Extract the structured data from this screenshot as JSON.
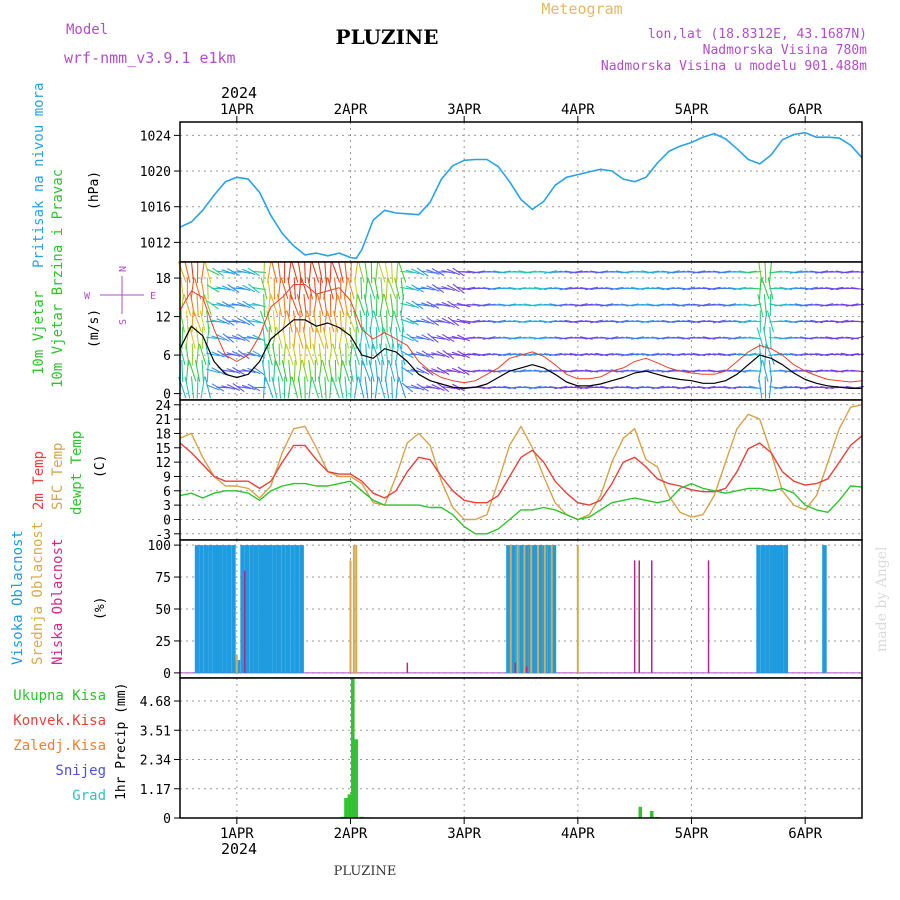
{
  "header": {
    "model_label": "Model",
    "model_name": "wrf-nmm_v3.9.1 e1km",
    "title": "PLUZINE",
    "meteogram_label": "Meteogram",
    "lonlat": "lon,lat (18.8312E, 43.1687N)",
    "altitude": "Nadmorska Visina 780m",
    "model_altitude": "Nadmorska Visina u modelu 901.488m",
    "top_year": "2024",
    "bottom_year": "2024",
    "footer_title": "PLUZINE",
    "credit": "made by Angel"
  },
  "colors": {
    "pressure": "#29a3e6",
    "wind_speed": "#000000",
    "gust": "#e8402a",
    "t2m": "#e8413a",
    "sfc": "#d7a34a",
    "dewpt": "#2dc42d",
    "high_cloud": "#1f9be0",
    "mid_cloud": "#d8aa4a",
    "low_cloud": "#b2278f",
    "precip": "#31c431",
    "purple_text": "#b04ec8",
    "arrow_far": "#8b25e0"
  },
  "chart_data": [
    {
      "type": "line",
      "name": "pressure",
      "ylabel": "Pritisak na nivou mora",
      "unit": "(hPa)",
      "yticks": [
        1012,
        1016,
        1020,
        1024
      ],
      "ylim": [
        1009.8,
        1025.5
      ],
      "x": [
        0.5,
        0.6,
        0.7,
        0.8,
        0.9,
        1.0,
        1.1,
        1.2,
        1.3,
        1.4,
        1.5,
        1.6,
        1.7,
        1.8,
        1.9,
        2.0,
        2.05,
        2.1,
        2.2,
        2.3,
        2.4,
        2.5,
        2.6,
        2.7,
        2.8,
        2.9,
        3.0,
        3.1,
        3.2,
        3.3,
        3.4,
        3.5,
        3.6,
        3.7,
        3.8,
        3.9,
        4.0,
        4.1,
        4.2,
        4.3,
        4.4,
        4.5,
        4.6,
        4.7,
        4.8,
        4.9,
        5.0,
        5.1,
        5.2,
        5.3,
        5.4,
        5.5,
        5.6,
        5.7,
        5.8,
        5.9,
        6.0,
        6.1,
        6.2,
        6.3,
        6.4,
        6.5
      ],
      "values": [
        1013.7,
        1014.3,
        1015.6,
        1017.3,
        1018.8,
        1019.3,
        1019.1,
        1017.6,
        1015.0,
        1013.0,
        1011.6,
        1010.6,
        1010.8,
        1010.5,
        1010.8,
        1010.3,
        1010.2,
        1011.2,
        1014.5,
        1015.6,
        1015.3,
        1015.2,
        1015.1,
        1016.5,
        1019.1,
        1020.6,
        1021.2,
        1021.3,
        1021.3,
        1020.5,
        1018.8,
        1016.8,
        1015.7,
        1016.6,
        1018.4,
        1019.3,
        1019.6,
        1019.9,
        1020.2,
        1020.0,
        1019.1,
        1018.8,
        1019.3,
        1020.9,
        1022.2,
        1022.8,
        1023.2,
        1023.8,
        1024.2,
        1023.6,
        1022.5,
        1021.3,
        1020.8,
        1021.8,
        1023.5,
        1024.1,
        1024.3,
        1023.8,
        1023.8,
        1023.7,
        1022.9,
        1021.5
      ]
    },
    {
      "type": "line",
      "name": "wind",
      "ylabel": "10m Vjetar Brzina i Pravac",
      "unit": "(m/s)",
      "compass": {
        "n": "N",
        "s": "S",
        "e": "E",
        "w": "W"
      },
      "yticks": [
        0,
        6,
        12,
        18
      ],
      "ylim": [
        -1,
        20.5
      ],
      "series": [
        {
          "name": "speed",
          "x": [
            0.5,
            0.6,
            0.7,
            0.8,
            0.9,
            1.0,
            1.1,
            1.2,
            1.3,
            1.4,
            1.5,
            1.6,
            1.7,
            1.8,
            1.9,
            2.0,
            2.1,
            2.2,
            2.3,
            2.4,
            2.5,
            2.6,
            2.7,
            2.8,
            2.9,
            3.0,
            3.1,
            3.2,
            3.3,
            3.4,
            3.5,
            3.6,
            3.7,
            3.8,
            3.9,
            4.0,
            4.1,
            4.2,
            4.3,
            4.4,
            4.5,
            4.6,
            4.7,
            4.8,
            4.9,
            5.0,
            5.1,
            5.2,
            5.3,
            5.4,
            5.5,
            5.6,
            5.7,
            5.8,
            5.9,
            6.0,
            6.1,
            6.2,
            6.3,
            6.4,
            6.5
          ],
          "values": [
            7,
            10.5,
            9,
            5,
            3,
            2.5,
            3,
            5,
            8.5,
            10,
            11.5,
            11.5,
            10.5,
            11,
            10.3,
            9,
            6,
            5.5,
            7,
            6.5,
            5,
            3,
            2,
            1.5,
            1,
            0.8,
            1,
            1.5,
            2.5,
            3.5,
            4,
            4.5,
            4,
            3,
            1.8,
            1.2,
            1.2,
            1.5,
            2,
            2.5,
            3.2,
            3.5,
            3,
            2.5,
            2.2,
            2,
            1.6,
            1.6,
            2,
            3,
            4.5,
            6,
            5.5,
            4.5,
            3.2,
            2.2,
            1.6,
            1.2,
            1,
            0.8,
            0.8
          ]
        },
        {
          "name": "gust",
          "x": [
            0.5,
            0.6,
            0.7,
            0.8,
            0.9,
            1.0,
            1.1,
            1.2,
            1.3,
            1.4,
            1.5,
            1.6,
            1.7,
            1.8,
            1.9,
            2.0,
            2.1,
            2.2,
            2.3,
            2.4,
            2.5,
            2.6,
            2.7,
            2.8,
            2.9,
            3.0,
            3.1,
            3.2,
            3.3,
            3.4,
            3.5,
            3.6,
            3.7,
            3.8,
            3.9,
            4.0,
            4.1,
            4.2,
            4.3,
            4.4,
            4.5,
            4.6,
            4.7,
            4.8,
            4.9,
            5.0,
            5.1,
            5.2,
            5.3,
            5.4,
            5.5,
            5.6,
            5.7,
            5.8,
            5.9,
            6.0,
            6.1,
            6.2,
            6.3,
            6.4,
            6.5
          ],
          "values": [
            13,
            16,
            15,
            10,
            6,
            5,
            6,
            9,
            13.5,
            15,
            17,
            17,
            15.5,
            16,
            16.5,
            14.5,
            10,
            8.5,
            9.5,
            8.5,
            7.5,
            5,
            3.5,
            2.5,
            2,
            1.7,
            2,
            3,
            4,
            5.5,
            6,
            6.5,
            5.8,
            4.5,
            3,
            2.3,
            2.3,
            2.6,
            3.5,
            4,
            5,
            5.5,
            4.8,
            4,
            3.5,
            3.2,
            3,
            3,
            3.5,
            5,
            6.5,
            7.5,
            7,
            6,
            4.5,
            3.5,
            2.8,
            2.2,
            2,
            1.8,
            2
          ]
        }
      ]
    },
    {
      "type": "line",
      "name": "temperature",
      "ylabels": [
        "2m Temp",
        "SFC Temp",
        "dewpt Temp"
      ],
      "unit": "(C)",
      "yticks": [
        -3,
        0,
        3,
        6,
        9,
        12,
        15,
        18,
        21,
        24
      ],
      "ylim": [
        -4.3,
        25
      ],
      "series": [
        {
          "name": "t2m",
          "x": [
            0.5,
            0.6,
            0.7,
            0.8,
            0.9,
            1.0,
            1.1,
            1.2,
            1.3,
            1.4,
            1.5,
            1.6,
            1.7,
            1.8,
            1.9,
            2.0,
            2.1,
            2.2,
            2.3,
            2.4,
            2.5,
            2.6,
            2.7,
            2.8,
            2.9,
            3.0,
            3.1,
            3.2,
            3.3,
            3.4,
            3.5,
            3.6,
            3.7,
            3.8,
            3.9,
            4.0,
            4.1,
            4.2,
            4.3,
            4.4,
            4.5,
            4.6,
            4.7,
            4.8,
            4.9,
            5.0,
            5.1,
            5.2,
            5.3,
            5.4,
            5.5,
            5.6,
            5.7,
            5.8,
            5.9,
            6.0,
            6.1,
            6.2,
            6.3,
            6.4,
            6.5
          ],
          "values": [
            16,
            14,
            11.5,
            9,
            8,
            8,
            8,
            6.5,
            8,
            12,
            15.5,
            15.5,
            12.5,
            10,
            9.5,
            9.5,
            8,
            5.5,
            4.5,
            6,
            10,
            13,
            12.5,
            9,
            6,
            4,
            3.5,
            3.5,
            5,
            9,
            13,
            14.5,
            12,
            8,
            5.5,
            3.5,
            3,
            4,
            7.5,
            12,
            13,
            11,
            8.5,
            7.5,
            7,
            6.2,
            5.8,
            5.8,
            6.5,
            10,
            14.8,
            16,
            14,
            10,
            8,
            7.2,
            7.5,
            8.5,
            12,
            15.5,
            17.5
          ]
        },
        {
          "name": "sfc",
          "x": [
            0.5,
            0.6,
            0.7,
            0.8,
            0.9,
            1.0,
            1.1,
            1.2,
            1.3,
            1.4,
            1.5,
            1.6,
            1.7,
            1.8,
            1.9,
            2.0,
            2.1,
            2.2,
            2.3,
            2.4,
            2.5,
            2.6,
            2.7,
            2.8,
            2.9,
            3.0,
            3.1,
            3.2,
            3.3,
            3.4,
            3.5,
            3.6,
            3.7,
            3.8,
            3.9,
            4.0,
            4.1,
            4.2,
            4.3,
            4.4,
            4.5,
            4.6,
            4.7,
            4.8,
            4.9,
            5.0,
            5.1,
            5.2,
            5.3,
            5.4,
            5.5,
            5.6,
            5.7,
            5.8,
            5.9,
            6.0,
            6.1,
            6.2,
            6.3,
            6.4,
            6.5
          ],
          "values": [
            17,
            18,
            13,
            9,
            7,
            7,
            6.5,
            4.5,
            7,
            14,
            19,
            19.5,
            15,
            10,
            9,
            9,
            7.5,
            3.5,
            3,
            9,
            16,
            18,
            15.5,
            8,
            2.5,
            0,
            0,
            1,
            8,
            15.5,
            19.5,
            15,
            9,
            3.5,
            1,
            0,
            1,
            5,
            12,
            17,
            19,
            12.5,
            11,
            5,
            1.5,
            0.5,
            1,
            5,
            12,
            19,
            22,
            21,
            14,
            6,
            3,
            2,
            5,
            12,
            19,
            23.5,
            24
          ]
        },
        {
          "name": "dewpt",
          "x": [
            0.5,
            0.6,
            0.7,
            0.8,
            0.9,
            1.0,
            1.1,
            1.2,
            1.3,
            1.4,
            1.5,
            1.6,
            1.7,
            1.8,
            1.9,
            2.0,
            2.1,
            2.2,
            2.3,
            2.4,
            2.5,
            2.6,
            2.7,
            2.8,
            2.9,
            3.0,
            3.1,
            3.2,
            3.3,
            3.4,
            3.5,
            3.6,
            3.7,
            3.8,
            3.9,
            4.0,
            4.1,
            4.2,
            4.3,
            4.4,
            4.5,
            4.6,
            4.7,
            4.8,
            4.9,
            5.0,
            5.1,
            5.2,
            5.3,
            5.4,
            5.5,
            5.6,
            5.7,
            5.8,
            5.9,
            6.0,
            6.1,
            6.2,
            6.3,
            6.4,
            6.5
          ],
          "values": [
            5,
            5.5,
            4.5,
            5.5,
            6,
            6,
            5.5,
            4,
            6,
            7,
            7.5,
            7.5,
            7,
            7,
            7.5,
            8,
            6,
            4,
            3,
            3,
            3,
            3,
            2.5,
            2.5,
            1,
            -1.5,
            -3,
            -3,
            -2,
            0,
            2,
            2,
            2.5,
            2,
            1,
            0,
            0.5,
            2,
            3.5,
            4,
            4.5,
            4,
            3.5,
            4,
            6.5,
            7.5,
            6.5,
            6,
            5.5,
            6,
            6.5,
            6.5,
            6,
            6.5,
            5.5,
            3,
            2,
            1.5,
            4,
            7,
            6.8
          ]
        }
      ]
    },
    {
      "type": "bar",
      "name": "cloud",
      "ylabels": [
        "Visoka Oblacnost",
        "Srednja Oblacnost",
        "Niska Oblacnost"
      ],
      "unit": "(%)",
      "yticks": [
        0,
        25,
        50,
        75,
        100
      ],
      "ylim": [
        -4,
        104
      ],
      "series": [
        {
          "name": "high",
          "x": [
            0.65,
            0.69,
            0.73,
            0.77,
            0.81,
            0.85,
            0.89,
            0.93,
            0.97,
            1.01,
            1.05,
            1.09,
            1.13,
            1.17,
            1.21,
            1.25,
            1.29,
            1.33,
            1.37,
            1.41,
            1.45,
            1.49,
            1.53,
            1.57,
            3.39,
            3.43,
            3.47,
            3.51,
            3.55,
            3.59,
            3.63,
            3.67,
            3.71,
            3.75,
            3.79,
            5.59,
            5.63,
            5.67,
            5.71,
            5.75,
            5.79,
            5.83,
            6.17
          ],
          "values": [
            100,
            100,
            100,
            100,
            100,
            100,
            100,
            100,
            100,
            10,
            100,
            100,
            100,
            100,
            100,
            100,
            100,
            100,
            100,
            100,
            100,
            100,
            100,
            100,
            100,
            100,
            100,
            100,
            100,
            100,
            100,
            100,
            100,
            100,
            100,
            100,
            100,
            100,
            100,
            100,
            100,
            100,
            100
          ]
        },
        {
          "name": "mid",
          "x": [
            1.0,
            2.0,
            2.03,
            2.05,
            3.41,
            3.47,
            3.53,
            3.59,
            3.65,
            3.71,
            3.77,
            4.0
          ],
          "values": [
            14,
            88,
            100,
            100,
            100,
            100,
            100,
            100,
            100,
            100,
            100,
            100
          ]
        },
        {
          "name": "low",
          "x": [
            1.07,
            2.5,
            3.45,
            3.55,
            4.5,
            4.54,
            4.65,
            5.15
          ],
          "values": [
            80,
            8,
            8,
            5,
            88,
            88,
            88,
            88
          ]
        }
      ]
    },
    {
      "type": "bar",
      "name": "precip",
      "ylabels": [
        "Ukupna Kisa",
        "Konvek.Kisa",
        "Zaledj.Kisa",
        "Snijeg",
        "Grad"
      ],
      "ylabel": "1hr Precip (mm)",
      "yticks": [
        0,
        1.17,
        2.34,
        3.51,
        4.68
      ],
      "ylim": [
        0,
        5.6
      ],
      "x": [
        1.93,
        1.96,
        1.99,
        2.02,
        2.05,
        2.1,
        2.15,
        4.55,
        4.65,
        4.7
      ],
      "values": [
        0.05,
        0.8,
        0.95,
        5.6,
        3.15,
        0.05,
        0.03,
        0.45,
        0.28,
        0.04
      ]
    }
  ],
  "time_axis": {
    "ticks": [
      1,
      2,
      3,
      4,
      5,
      6
    ],
    "labels": [
      "1APR",
      "2APR",
      "3APR",
      "4APR",
      "5APR",
      "6APR"
    ],
    "xlim": [
      0.5,
      6.5
    ]
  }
}
